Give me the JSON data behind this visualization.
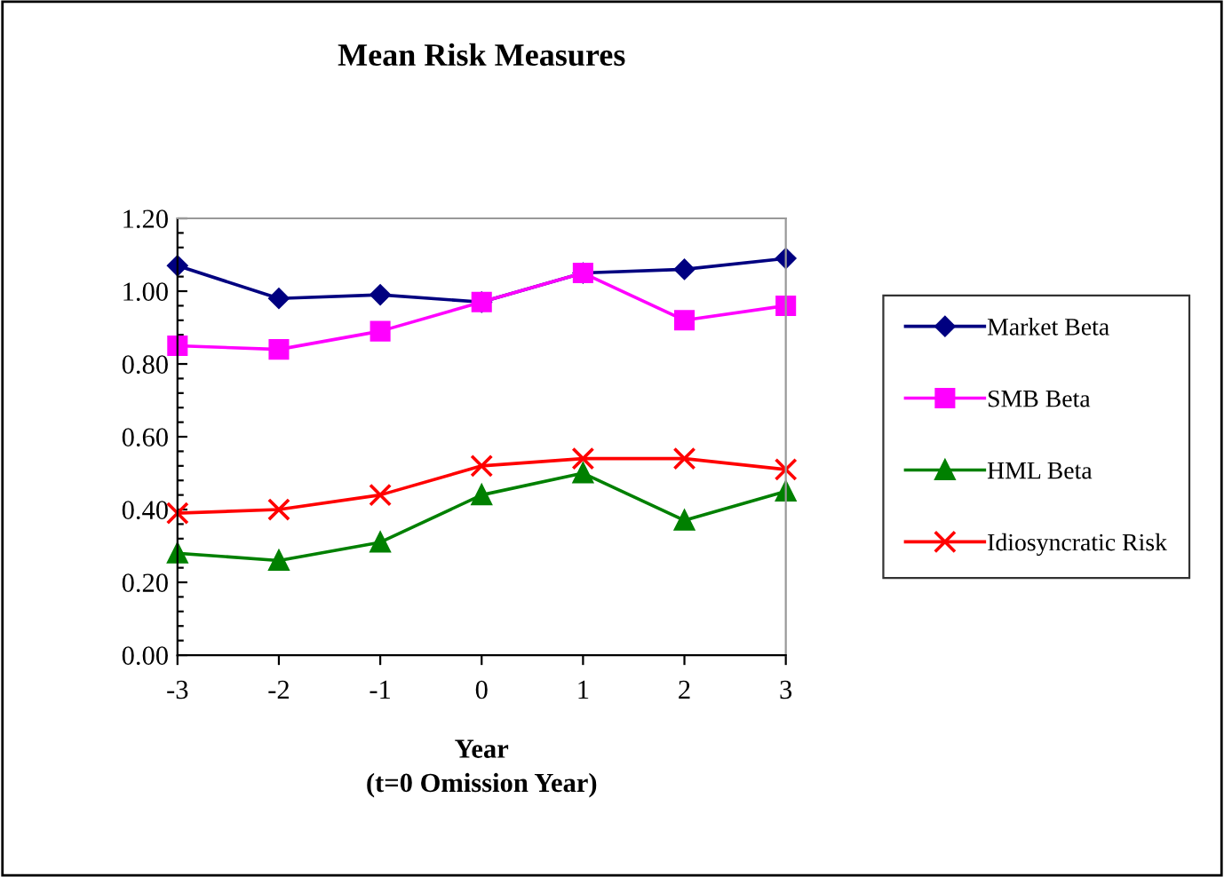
{
  "chart_data": {
    "type": "line",
    "title": "Mean Risk Measures",
    "xlabel": "Year\n(t=0 Omission Year)",
    "x": [
      -3,
      -2,
      -1,
      0,
      1,
      2,
      3
    ],
    "xlim": [
      -3,
      3
    ],
    "xticks": [
      -3,
      -2,
      -1,
      0,
      1,
      2,
      3
    ],
    "ylim": [
      0,
      1.2
    ],
    "yticks": [
      {
        "value": 0,
        "label": "0.00"
      },
      {
        "value": 0.04,
        "label": null
      },
      {
        "value": 0.08,
        "label": null
      },
      {
        "value": 0.12,
        "label": null
      },
      {
        "value": 0.16,
        "label": null
      },
      {
        "value": 0.2,
        "label": "0.20"
      },
      {
        "value": 0.24,
        "label": null
      },
      {
        "value": 0.28,
        "label": null
      },
      {
        "value": 0.32,
        "label": null
      },
      {
        "value": 0.36,
        "label": null
      },
      {
        "value": 0.4,
        "label": "0.40"
      },
      {
        "value": 0.44,
        "label": null
      },
      {
        "value": 0.48,
        "label": null
      },
      {
        "value": 0.52,
        "label": null
      },
      {
        "value": 0.56,
        "label": null
      },
      {
        "value": 0.6,
        "label": "0.60"
      },
      {
        "value": 0.64,
        "label": null
      },
      {
        "value": 0.68,
        "label": null
      },
      {
        "value": 0.72,
        "label": null
      },
      {
        "value": 0.76,
        "label": null
      },
      {
        "value": 0.8,
        "label": "0.80"
      },
      {
        "value": 0.84,
        "label": null
      },
      {
        "value": 0.88,
        "label": null
      },
      {
        "value": 0.92,
        "label": null
      },
      {
        "value": 0.96,
        "label": null
      },
      {
        "value": 1.0,
        "label": "1.00"
      },
      {
        "value": 1.04,
        "label": null
      },
      {
        "value": 1.08,
        "label": null
      },
      {
        "value": 1.12,
        "label": null
      },
      {
        "value": 1.16,
        "label": null
      },
      {
        "value": 1.2,
        "label": "1.20"
      }
    ],
    "grid": false,
    "legend": "right",
    "line_style": "solid",
    "series": [
      {
        "name": "Market Beta",
        "color": "#000080",
        "marker": "diamond",
        "values": [
          1.07,
          0.98,
          0.99,
          0.97,
          1.05,
          1.06,
          1.09
        ]
      },
      {
        "name": "SMB Beta",
        "color": "#ff00ff",
        "marker": "square",
        "values": [
          0.85,
          0.84,
          0.89,
          0.97,
          1.05,
          0.92,
          0.96
        ]
      },
      {
        "name": "HML Beta",
        "color": "#008000",
        "marker": "triangle",
        "values": [
          0.28,
          0.26,
          0.31,
          0.44,
          0.5,
          0.37,
          0.45
        ]
      },
      {
        "name": "Idiosyncratic Risk",
        "color": "#ff0000",
        "marker": "cross",
        "values": [
          0.39,
          0.4,
          0.44,
          0.52,
          0.54,
          0.54,
          0.51
        ]
      }
    ]
  }
}
